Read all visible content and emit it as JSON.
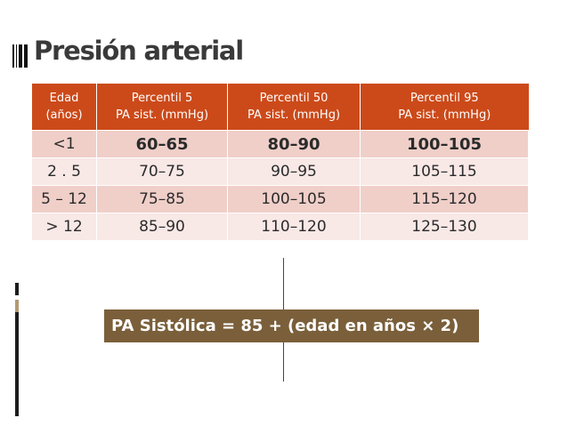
{
  "slide": {
    "title": "Presión arterial"
  },
  "table": {
    "headers": [
      [
        "Edad",
        "(años)"
      ],
      [
        "Percentil 5",
        "PA sist. (mmHg)"
      ],
      [
        "Percentil 50",
        "PA sist. (mmHg)"
      ],
      [
        "Percentil 95",
        "PA sist. (mmHg)"
      ]
    ],
    "rows": [
      [
        "<1",
        "60–65",
        "80–90",
        "100–105"
      ],
      [
        "2 . 5",
        "70–75",
        "90–95",
        "105–115"
      ],
      [
        "5 – 12",
        "75–85",
        "100–105",
        "115–120"
      ],
      [
        "> 12",
        "85–90",
        "110–120",
        "125–130"
      ]
    ]
  },
  "formula": "PA Sistólica = 85 + (edad en años × 2)",
  "colors": {
    "header_bg": "#cc4a1a",
    "row_odd": "#f0cfc9",
    "row_even": "#f8e8e6",
    "formula_bg": "#7a5f3a",
    "title_text": "#3a3a3a"
  }
}
